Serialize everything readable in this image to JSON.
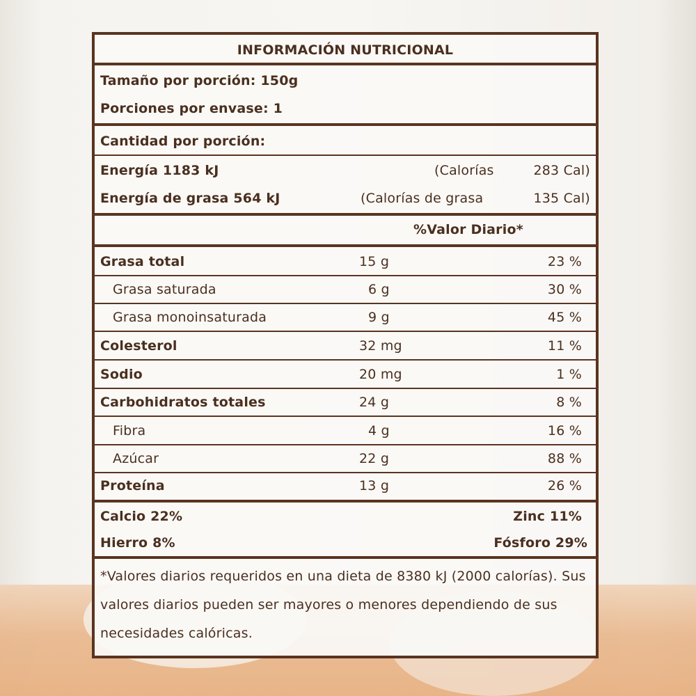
{
  "title": "INFORMACIÓN NUTRICIONAL",
  "serving_size": "Tamaño por porción: 150g",
  "servings_per_container": "Porciones por envase: 1",
  "amount_per_serving": "Cantidad por porción:",
  "energy": {
    "label": "Energía 1183 kJ",
    "calories": "(Calorías",
    "calories_value": "283 Cal)"
  },
  "fat_energy": {
    "label": "Energía de grasa 564 kJ",
    "calories": "(Calorías de grasa",
    "calories_value": "135 Cal)"
  },
  "daily_value_header": "%Valor Diario*",
  "nutrients": [
    {
      "name": "Grasa total",
      "amount": "15 g",
      "dv": "23 %"
    },
    {
      "name": "Grasa saturada",
      "amount": "6 g",
      "dv": "30 %"
    },
    {
      "name": "Grasa monoinsaturada",
      "amount": "9 g",
      "dv": "45 %"
    },
    {
      "name": "Colesterol",
      "amount": "32 mg",
      "dv": "11 %"
    },
    {
      "name": "Sodio",
      "amount": "20 mg",
      "dv": "1 %"
    },
    {
      "name": "Carbohidratos totales",
      "amount": "24 g",
      "dv": "8 %"
    },
    {
      "name": "Fibra",
      "amount": "4 g",
      "dv": "16 %"
    },
    {
      "name": "Azúcar",
      "amount": "22 g",
      "dv": "88 %"
    },
    {
      "name": "Proteína",
      "amount": "13 g",
      "dv": "26 %"
    }
  ],
  "minerals": {
    "calcio": "Calcio 22%",
    "zinc": "Zinc 11%",
    "hierro": "Hierro 8%",
    "fosforo": "Fósforo 29%"
  },
  "footnote": "*Valores diarios requeridos en una dieta de 8380 kJ (2000 calorías). Sus valores diarios pueden ser mayores o menores dependiendo de sus necesidades calóricas."
}
